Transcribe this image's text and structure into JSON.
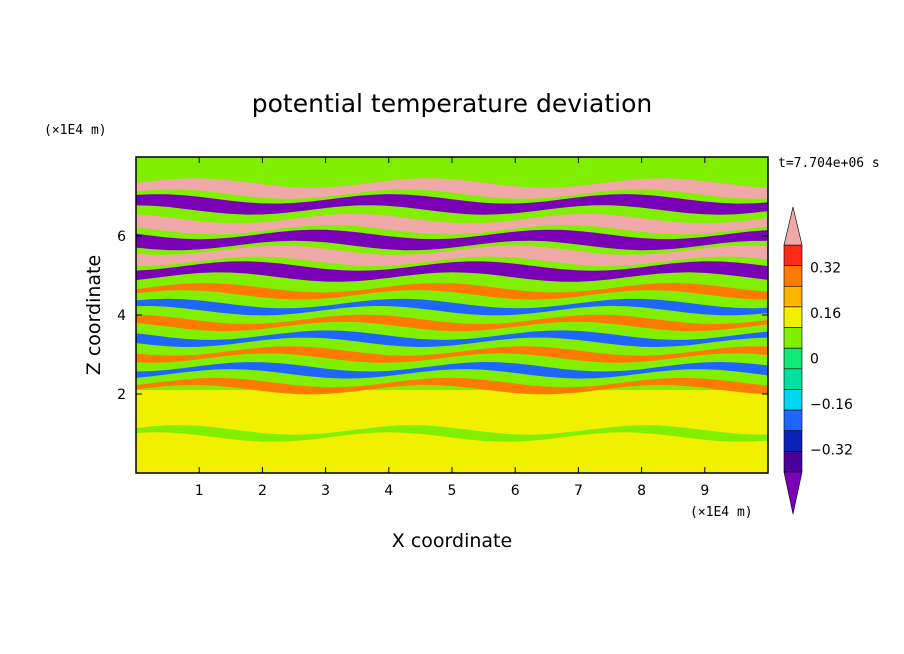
{
  "chart_data": {
    "type": "heatmap",
    "title": "potential temperature deviation",
    "xlabel": "X coordinate",
    "ylabel": "Z coordinate",
    "x_unit": "(×1E4 m)",
    "y_unit": "(×1E4 m)",
    "time_label": "t=7.704e+06 s",
    "xlim": [
      0,
      10
    ],
    "ylim": [
      0,
      8
    ],
    "x_ticks": [
      "1",
      "2",
      "3",
      "4",
      "5",
      "6",
      "7",
      "8",
      "9"
    ],
    "y_ticks": [
      "2",
      "4",
      "6"
    ],
    "colorbar": {
      "levels": [
        -0.48,
        -0.4,
        -0.32,
        -0.24,
        -0.16,
        -0.08,
        0,
        0.08,
        0.16,
        0.24,
        0.32,
        0.4,
        0.48
      ],
      "tick_labels": [
        "0.32",
        "0.16",
        "0",
        "−0.16",
        "−0.32"
      ],
      "tick_values": [
        0.32,
        0.16,
        0,
        -0.16,
        -0.32
      ],
      "colors": [
        "#7a00b8",
        "#4b0096",
        "#0a22b8",
        "#1f66ff",
        "#00d8f0",
        "#00e0a0",
        "#10e878",
        "#80f000",
        "#f0f000",
        "#ffb400",
        "#ff7a00",
        "#ff2a1a",
        "#f0a8a8"
      ],
      "extend": "both"
    },
    "bands": [
      {
        "z": 7.2,
        "value": 0.5
      },
      {
        "z": 6.8,
        "value": -0.5
      },
      {
        "z": 6.3,
        "value": 0.5
      },
      {
        "z": 5.9,
        "value": -0.5
      },
      {
        "z": 5.5,
        "value": 0.5
      },
      {
        "z": 5.1,
        "value": -0.5
      },
      {
        "z": 4.6,
        "value": 0.3
      },
      {
        "z": 4.2,
        "value": -0.3
      },
      {
        "z": 3.8,
        "value": 0.3
      },
      {
        "z": 3.4,
        "value": -0.3
      },
      {
        "z": 3.0,
        "value": 0.3
      },
      {
        "z": 2.6,
        "value": -0.3
      },
      {
        "z": 2.2,
        "value": 0.3
      },
      {
        "z": 1.0,
        "value": 0.05
      }
    ]
  }
}
